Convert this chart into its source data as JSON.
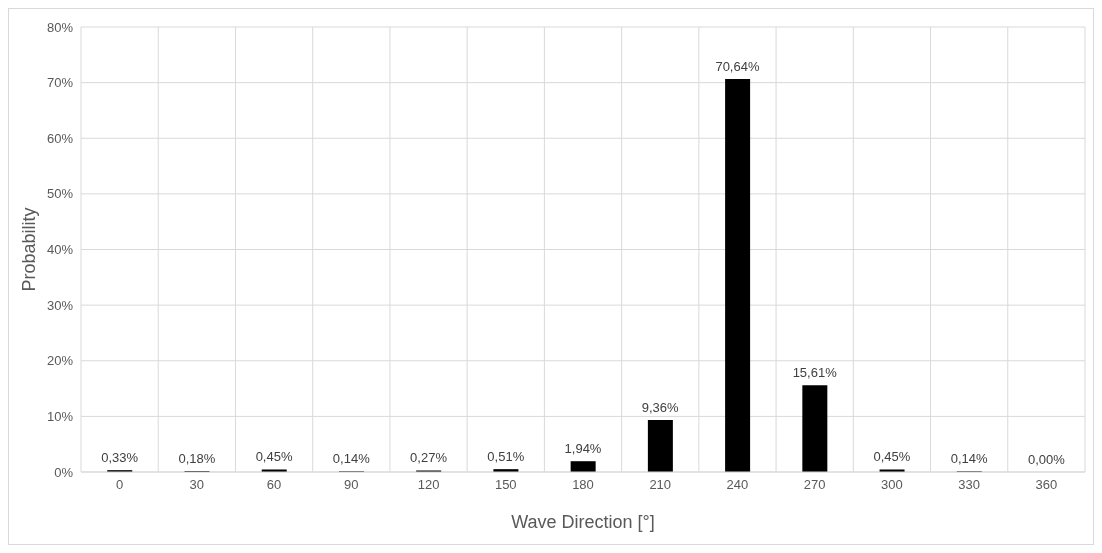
{
  "chart_data": {
    "type": "bar",
    "xlabel": "Wave Direction [°]",
    "ylabel": "Probability",
    "categories": [
      "0",
      "30",
      "60",
      "90",
      "120",
      "150",
      "180",
      "210",
      "240",
      "270",
      "300",
      "330",
      "360"
    ],
    "values": [
      0.33,
      0.18,
      0.45,
      0.14,
      0.27,
      0.51,
      1.94,
      9.36,
      70.64,
      15.61,
      0.45,
      0.14,
      0.0
    ],
    "value_labels": [
      "0,33%",
      "0,18%",
      "0,45%",
      "0,14%",
      "0,27%",
      "0,51%",
      "1,94%",
      "9,36%",
      "70,64%",
      "15,61%",
      "0,45%",
      "0,14%",
      "0,00%"
    ],
    "color": "#000000",
    "ylim": [
      0,
      80
    ],
    "yticks": [
      {
        "value": 0,
        "label": "0%"
      },
      {
        "value": 10,
        "label": "10%"
      },
      {
        "value": 20,
        "label": "20%"
      },
      {
        "value": 30,
        "label": "30%"
      },
      {
        "value": 40,
        "label": "40%"
      },
      {
        "value": 50,
        "label": "50%"
      },
      {
        "value": 60,
        "label": "60%"
      },
      {
        "value": 70,
        "label": "70%"
      },
      {
        "value": 80,
        "label": "80%"
      }
    ],
    "grid": true,
    "legend": false
  }
}
